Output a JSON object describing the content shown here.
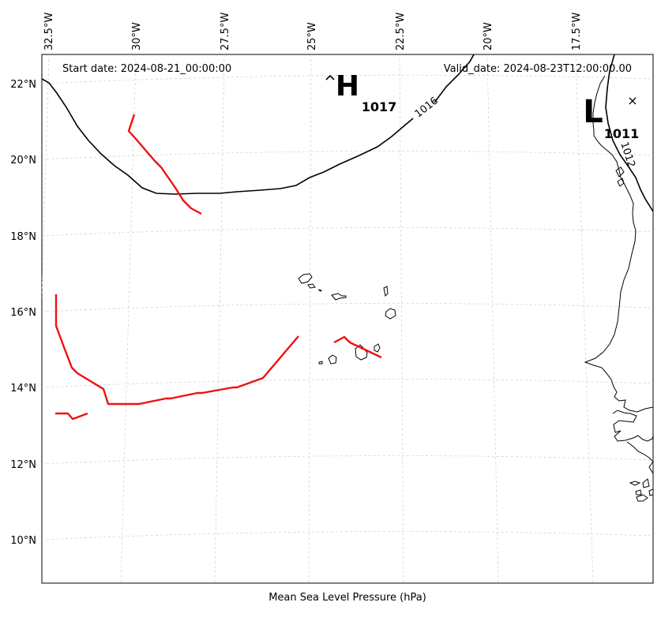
{
  "header": {
    "start_date": "Start date: 2024-08-21_00:00:00",
    "valid_date": "Valid_date: 2024-08-23T12:00:00.00"
  },
  "footer": {
    "xlabel": "Mean Sea Level Pressure (hPa)"
  },
  "axes": {
    "lon_ticks": [
      "32.5°W",
      "30°W",
      "27.5°W",
      "25°W",
      "22.5°W",
      "20°W",
      "17.5°W"
    ],
    "lat_ticks": [
      "22°N",
      "20°N",
      "18°N",
      "16°N",
      "14°N",
      "12°N",
      "10°N"
    ]
  },
  "pressure_centers": [
    {
      "letter": "H",
      "value": "1017"
    },
    {
      "letter": "L",
      "value": "1011"
    }
  ],
  "contour_labels": [
    "1016",
    "1012"
  ],
  "markers": [
    {
      "symbol": "×"
    }
  ],
  "colors": {
    "isobar": "#000000",
    "trough": "#ee1111",
    "grid": "#cccccc"
  }
}
